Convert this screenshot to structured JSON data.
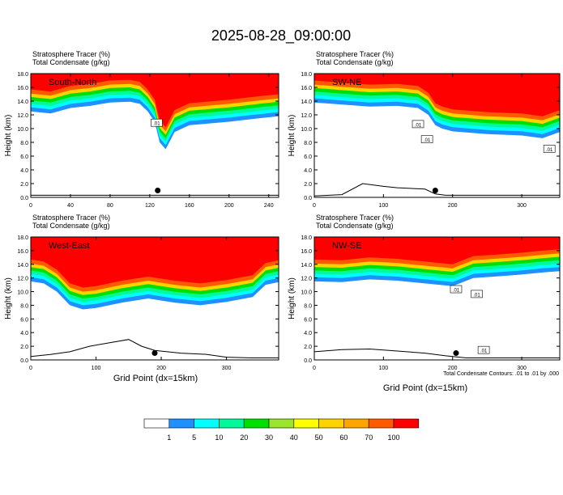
{
  "title": "2025-08-28_09:00:00",
  "panel_header": {
    "tracer_label": "Stratosphere Tracer",
    "tracer_unit": "(%)",
    "cond_label": "Total Condensate",
    "cond_unit": "(g/kg)"
  },
  "ylabel": "Height (km)",
  "xlabel": "Grid Point (dx=15km)",
  "contour_note": "Total Condensate Contours: .01 to .01 by .000",
  "contour_tag": ".01",
  "colorbar": {
    "colors": [
      "#ffffff",
      "#1e90ff",
      "#00ffff",
      "#00fa9a",
      "#00e000",
      "#9be62d",
      "#ffff00",
      "#ffd200",
      "#ffa500",
      "#ff5a00",
      "#ff0000"
    ],
    "labels": [
      "1",
      "5",
      "10",
      "20",
      "30",
      "40",
      "50",
      "60",
      "70",
      "100"
    ]
  },
  "chart_data": [
    {
      "type": "heatmap",
      "name": "South-North",
      "ylabel": "Height (km)",
      "xlim": [
        0,
        250
      ],
      "ylim": [
        0,
        18
      ],
      "xticks": [
        "0",
        "40",
        "80",
        "120",
        "160",
        "200",
        "240"
      ],
      "xtick_values": [
        0,
        40,
        80,
        120,
        160,
        200,
        240
      ],
      "yticks": [
        "0.0",
        "2.0",
        "4.0",
        "6.0",
        "8.0",
        "10.0",
        "12.0",
        "14.0",
        "16.0",
        "18.0"
      ],
      "top_base": [
        [
          0,
          12.5
        ],
        [
          20,
          12.2
        ],
        [
          40,
          13.0
        ],
        [
          60,
          13.3
        ],
        [
          80,
          13.8
        ],
        [
          100,
          13.9
        ],
        [
          110,
          13.6
        ],
        [
          118,
          12.5
        ],
        [
          125,
          11.0
        ],
        [
          130,
          8.0
        ],
        [
          136,
          7.0
        ],
        [
          145,
          9.5
        ],
        [
          160,
          10.5
        ],
        [
          200,
          11.0
        ],
        [
          230,
          11.5
        ],
        [
          250,
          11.8
        ]
      ],
      "terrain": [
        [
          0,
          0.3
        ],
        [
          40,
          0.3
        ],
        [
          80,
          0.3
        ],
        [
          120,
          0.3
        ],
        [
          160,
          0.3
        ],
        [
          200,
          0.3
        ],
        [
          250,
          0.3
        ]
      ],
      "marker": {
        "x": 128,
        "y": 1.0
      },
      "contour_tags": [
        {
          "x": 127,
          "y": 10.8
        }
      ]
    },
    {
      "type": "heatmap",
      "name": "SW-NE",
      "ylabel": "Height (km)",
      "xlim": [
        0,
        355
      ],
      "ylim": [
        0,
        18
      ],
      "xticks": [
        "0",
        "100",
        "200",
        "300"
      ],
      "xtick_values": [
        0,
        100,
        200,
        300
      ],
      "yticks": [
        "0.0",
        "2.0",
        "4.0",
        "6.0",
        "8.0",
        "10.0",
        "12.0",
        "14.0",
        "16.0",
        "18.0"
      ],
      "top_base": [
        [
          0,
          13.8
        ],
        [
          40,
          13.5
        ],
        [
          80,
          13.2
        ],
        [
          120,
          13.3
        ],
        [
          150,
          13.0
        ],
        [
          165,
          12.0
        ],
        [
          175,
          10.5
        ],
        [
          185,
          10.0
        ],
        [
          200,
          9.6
        ],
        [
          250,
          9.2
        ],
        [
          300,
          9.0
        ],
        [
          330,
          8.6
        ],
        [
          355,
          9.5
        ]
      ],
      "terrain": [
        [
          0,
          0.2
        ],
        [
          40,
          0.4
        ],
        [
          70,
          2.0
        ],
        [
          100,
          1.6
        ],
        [
          120,
          1.4
        ],
        [
          160,
          1.2
        ],
        [
          175,
          0.5
        ],
        [
          190,
          0.3
        ],
        [
          250,
          0.3
        ],
        [
          300,
          0.3
        ],
        [
          355,
          0.3
        ]
      ],
      "marker": {
        "x": 175,
        "y": 1.0
      },
      "contour_tags": [
        {
          "x": 150,
          "y": 10.6
        },
        {
          "x": 163,
          "y": 8.4
        },
        {
          "x": 340,
          "y": 7.0
        }
      ]
    },
    {
      "type": "heatmap",
      "name": "West-East",
      "ylabel": "Height (km)",
      "xlim": [
        0,
        380
      ],
      "ylim": [
        0,
        18
      ],
      "xticks": [
        "0",
        "100",
        "200",
        "300"
      ],
      "xtick_values": [
        0,
        100,
        200,
        300
      ],
      "yticks": [
        "0.0",
        "2.0",
        "4.0",
        "6.0",
        "8.0",
        "10.0",
        "12.0",
        "14.0",
        "16.0",
        "18.0"
      ],
      "top_base": [
        [
          0,
          11.5
        ],
        [
          20,
          11.2
        ],
        [
          40,
          10.0
        ],
        [
          60,
          8.0
        ],
        [
          80,
          7.4
        ],
        [
          100,
          7.6
        ],
        [
          140,
          8.4
        ],
        [
          180,
          9.0
        ],
        [
          220,
          8.4
        ],
        [
          260,
          8.0
        ],
        [
          300,
          8.5
        ],
        [
          340,
          9.2
        ],
        [
          360,
          11.0
        ],
        [
          380,
          11.4
        ]
      ],
      "terrain": [
        [
          0,
          0.5
        ],
        [
          30,
          0.8
        ],
        [
          60,
          1.2
        ],
        [
          90,
          2.0
        ],
        [
          120,
          2.5
        ],
        [
          150,
          3.0
        ],
        [
          170,
          2.0
        ],
        [
          190,
          1.4
        ],
        [
          230,
          1.0
        ],
        [
          270,
          0.8
        ],
        [
          300,
          0.4
        ],
        [
          340,
          0.3
        ],
        [
          380,
          0.3
        ]
      ],
      "marker": {
        "x": 190,
        "y": 1.0
      },
      "contour_tags": []
    },
    {
      "type": "heatmap",
      "name": "NW-SE",
      "ylabel": "Height (km)",
      "xlim": [
        0,
        355
      ],
      "ylim": [
        0,
        18
      ],
      "xticks": [
        "0",
        "100",
        "200",
        "300"
      ],
      "xtick_values": [
        0,
        100,
        200,
        300
      ],
      "yticks": [
        "0.0",
        "2.0",
        "4.0",
        "6.0",
        "8.0",
        "10.0",
        "12.0",
        "14.0",
        "16.0",
        "18.0"
      ],
      "top_base": [
        [
          0,
          11.5
        ],
        [
          40,
          11.4
        ],
        [
          80,
          11.8
        ],
        [
          120,
          11.6
        ],
        [
          160,
          11.2
        ],
        [
          200,
          10.8
        ],
        [
          230,
          12.0
        ],
        [
          260,
          12.2
        ],
        [
          300,
          12.5
        ],
        [
          330,
          12.8
        ],
        [
          355,
          13.0
        ]
      ],
      "terrain": [
        [
          0,
          1.2
        ],
        [
          40,
          1.5
        ],
        [
          80,
          1.6
        ],
        [
          120,
          1.3
        ],
        [
          160,
          1.0
        ],
        [
          190,
          0.6
        ],
        [
          220,
          0.3
        ],
        [
          260,
          0.3
        ],
        [
          300,
          0.3
        ],
        [
          355,
          0.3
        ]
      ],
      "marker": {
        "x": 205,
        "y": 1.0
      },
      "contour_tags": [
        {
          "x": 205,
          "y": 10.3
        },
        {
          "x": 235,
          "y": 9.6
        },
        {
          "x": 245,
          "y": 1.4
        }
      ]
    }
  ]
}
